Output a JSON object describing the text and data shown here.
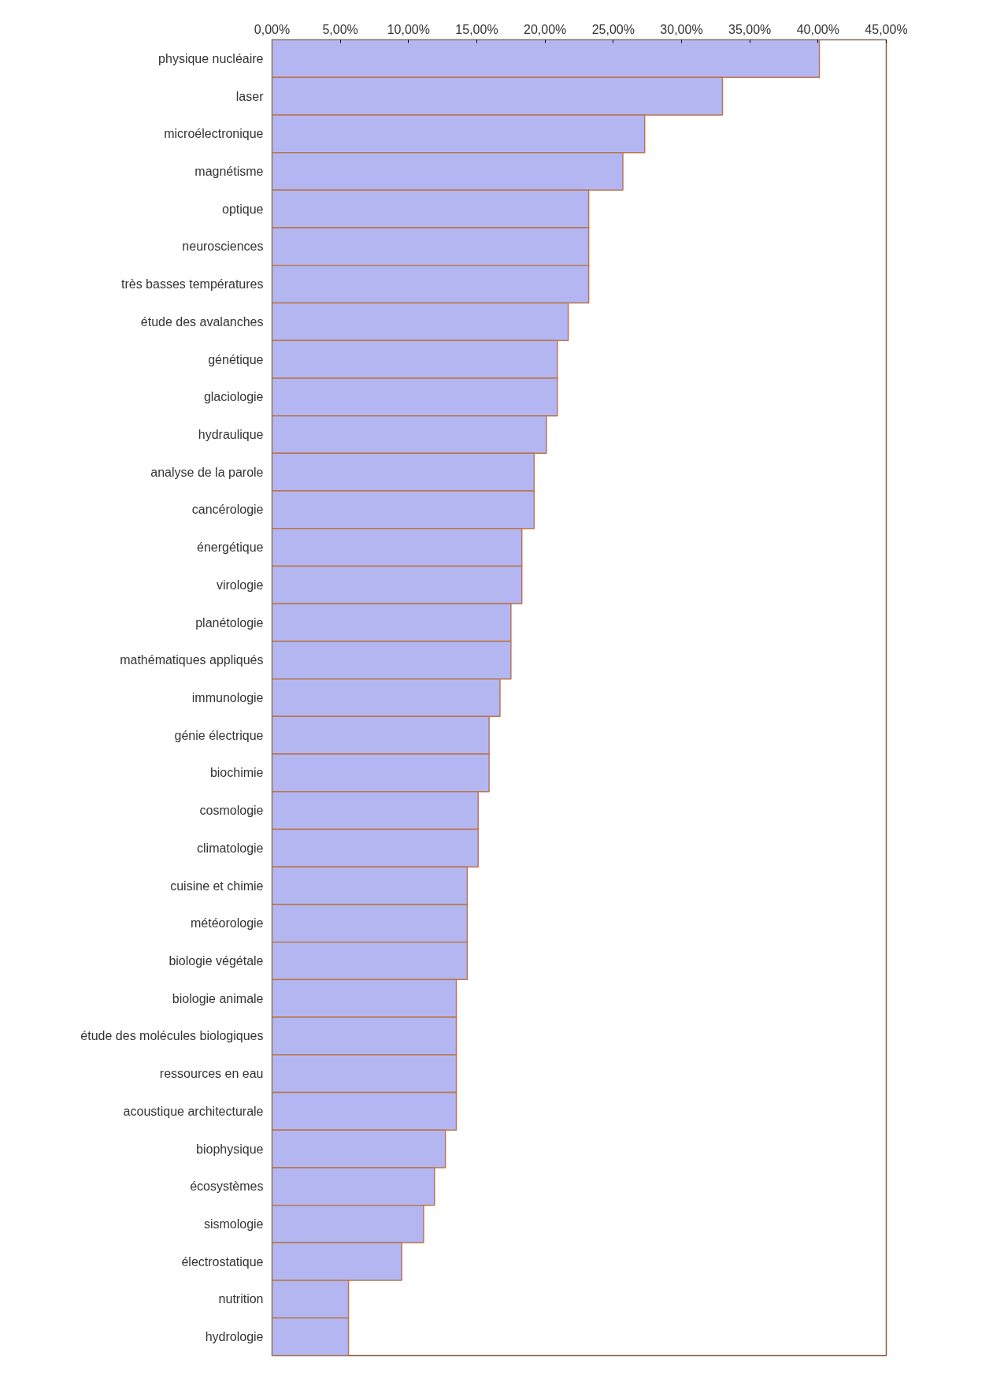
{
  "chart_data": {
    "type": "bar",
    "orientation": "horizontal",
    "color": "#b4b6f2",
    "categories": [
      "physique nucléaire",
      "laser",
      "microélectronique",
      "magnétisme",
      "optique",
      "neurosciences",
      "très basses températures",
      "étude des avalanches",
      "génétique",
      "glaciologie",
      "hydraulique",
      "analyse de la parole",
      "cancérologie",
      "énergétique",
      "virologie",
      "planétologie",
      "mathématiques appliqués",
      "immunologie",
      "génie électrique",
      "biochimie",
      "cosmologie",
      "climatologie",
      "cuisine et chimie",
      "météorologie",
      "biologie végétale",
      "biologie animale",
      "étude des molécules biologiques",
      "ressources en eau",
      "acoustique architecturale",
      "biophysique",
      "écosystèmes",
      "sismologie",
      "électrostatique",
      "nutrition",
      "hydrologie"
    ],
    "values": [
      40.1,
      33.0,
      27.3,
      25.7,
      23.2,
      23.2,
      23.2,
      21.7,
      20.9,
      20.9,
      20.1,
      19.2,
      19.2,
      18.3,
      18.3,
      17.5,
      17.5,
      16.7,
      15.9,
      15.9,
      15.1,
      15.1,
      14.3,
      14.3,
      14.3,
      13.5,
      13.5,
      13.5,
      13.5,
      12.7,
      11.9,
      11.1,
      9.5,
      5.6,
      5.6
    ],
    "xlim": [
      0,
      45
    ],
    "xticks": [
      {
        "value": 0,
        "label": "0,00%"
      },
      {
        "value": 5,
        "label": "5,00%"
      },
      {
        "value": 10,
        "label": "10,00%"
      },
      {
        "value": 15,
        "label": "15,00%"
      },
      {
        "value": 20,
        "label": "20,00%"
      },
      {
        "value": 25,
        "label": "25,00%"
      },
      {
        "value": 30,
        "label": "30,00%"
      },
      {
        "value": 35,
        "label": "35,00%"
      },
      {
        "value": 40,
        "label": "40,00%"
      },
      {
        "value": 45,
        "label": "45,00%"
      }
    ],
    "grid": false
  }
}
